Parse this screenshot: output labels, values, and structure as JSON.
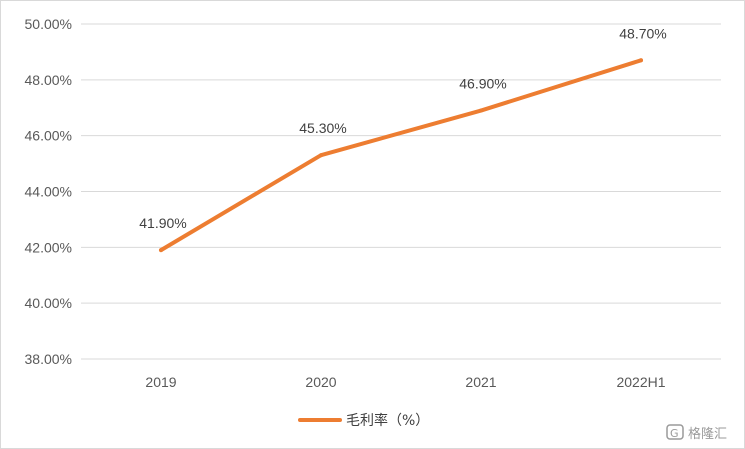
{
  "chart_data": {
    "type": "line",
    "categories": [
      "2019",
      "2020",
      "2021",
      "2022H1"
    ],
    "series": [
      {
        "name": "毛利率（%）",
        "values": [
          41.9,
          45.3,
          46.9,
          48.7
        ],
        "value_labels": [
          "41.90%",
          "45.30%",
          "46.90%",
          "48.70%"
        ],
        "color": "#ed7d31"
      }
    ],
    "y_ticks": [
      "38.00%",
      "40.00%",
      "42.00%",
      "44.00%",
      "46.00%",
      "48.00%",
      "50.00%"
    ],
    "ylim": [
      38,
      50
    ],
    "grid": true,
    "legend": "bottom",
    "title": "",
    "xlabel": "",
    "ylabel": ""
  },
  "watermark": {
    "icon": "gelonghui-logo-icon",
    "text": "格隆汇"
  }
}
